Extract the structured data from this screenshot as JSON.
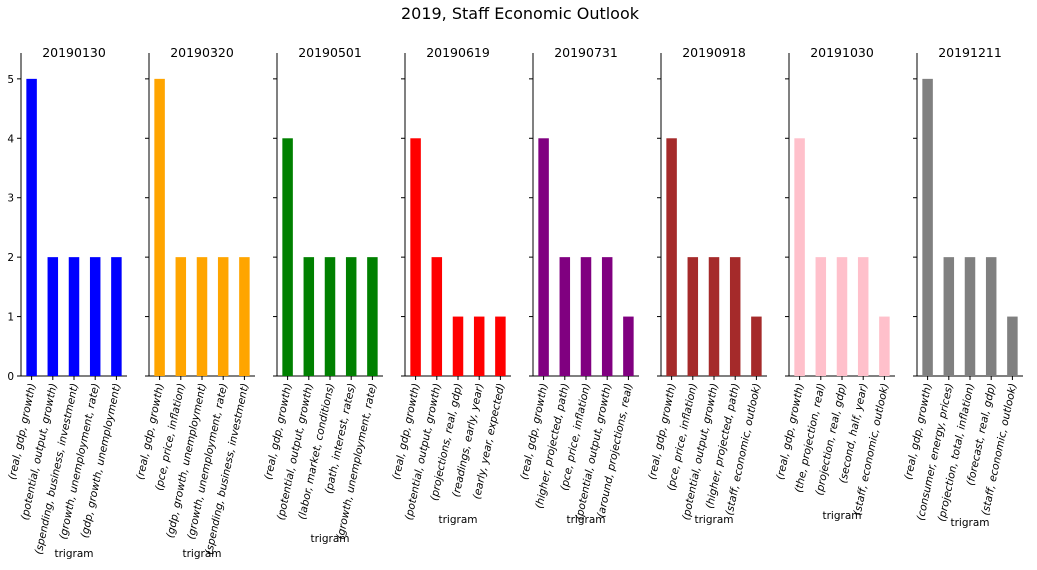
{
  "chart_data": {
    "type": "bar",
    "title": "2019, Staff Economic Outlook",
    "ylim": [
      0,
      5.25
    ],
    "yticks": [
      0,
      1,
      2,
      3,
      4,
      5
    ],
    "panels": [
      {
        "title": "20190130",
        "color": "#0000ff",
        "xlabel": "trigram",
        "categories": [
          "(real, gdp, growth)",
          "(potential, output, growth)",
          "(spending, business, investment)",
          "(growth, unemployment, rate)",
          "(gdp, growth, unemployment)"
        ],
        "values": [
          5,
          2,
          2,
          2,
          2
        ]
      },
      {
        "title": "20190320",
        "color": "#ffa500",
        "xlabel": "trigram",
        "categories": [
          "(real, gdp, growth)",
          "(pce, price, inflation)",
          "(gdp, growth, unemployment)",
          "(growth, unemployment, rate)",
          "(spending, business, investment)"
        ],
        "values": [
          5,
          2,
          2,
          2,
          2
        ]
      },
      {
        "title": "20190501",
        "color": "#008000",
        "xlabel": "trigram",
        "categories": [
          "(real, gdp, growth)",
          "(potential, output, growth)",
          "(labor, market, conditions)",
          "(path, interest, rates)",
          "(growth, unemployment, rate)"
        ],
        "values": [
          4,
          2,
          2,
          2,
          2
        ]
      },
      {
        "title": "20190619",
        "color": "#ff0000",
        "xlabel": "trigram",
        "categories": [
          "(real, gdp, growth)",
          "(potential, output, growth)",
          "(projections, real, gdp)",
          "(readings, early, year)",
          "(early, year, expected)"
        ],
        "values": [
          4,
          2,
          1,
          1,
          1
        ]
      },
      {
        "title": "20190731",
        "color": "#800080",
        "xlabel": "trigram",
        "categories": [
          "(real, gdp, growth)",
          "(higher, projected, path)",
          "(pce, price, inflation)",
          "(potential, output, growth)",
          "(around, projections, real)"
        ],
        "values": [
          4,
          2,
          2,
          2,
          1
        ]
      },
      {
        "title": "20190918",
        "color": "#a52a2a",
        "xlabel": "trigram",
        "categories": [
          "(real, gdp, growth)",
          "(pce, price, inflation)",
          "(potential, output, growth)",
          "(higher, projected, path)",
          "(staff, economic, outlook)"
        ],
        "values": [
          4,
          2,
          2,
          2,
          1
        ]
      },
      {
        "title": "20191030",
        "color": "#ffc0cb",
        "xlabel": "trigram",
        "categories": [
          "(real, gdp, growth)",
          "(the, projection, real)",
          "(projection, real, gdp)",
          "(second, half, year)",
          "(staff, economic, outlook)"
        ],
        "values": [
          4,
          2,
          2,
          2,
          1
        ]
      },
      {
        "title": "20191211",
        "color": "#808080",
        "xlabel": "trigram",
        "categories": [
          "(real, gdp, growth)",
          "(consumer, energy, prices)",
          "(projection, total, inflation)",
          "(forecast, real, gdp)",
          "(staff, economic, outlook)"
        ],
        "values": [
          5,
          2,
          2,
          2,
          1
        ]
      }
    ]
  }
}
